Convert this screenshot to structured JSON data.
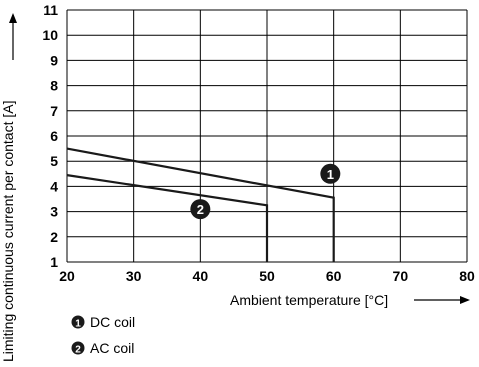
{
  "chart_data": {
    "type": "line",
    "xlabel": "Ambient temperature [°C]",
    "ylabel": "Limiting continuous current per contact [A]",
    "xlim": [
      20,
      80
    ],
    "ylim": [
      1,
      11
    ],
    "x_ticks": [
      20,
      30,
      40,
      50,
      60,
      70,
      80
    ],
    "y_ticks": [
      1,
      2,
      3,
      4,
      5,
      6,
      7,
      8,
      9,
      10,
      11
    ],
    "grid": true,
    "series": [
      {
        "marker": "1",
        "name": "DC coil",
        "x": [
          20,
          60,
          60
        ],
        "y": [
          5.5,
          3.55,
          1
        ]
      },
      {
        "marker": "2",
        "name": "AC coil",
        "x": [
          20,
          50,
          50
        ],
        "y": [
          4.45,
          3.25,
          1
        ]
      }
    ],
    "legend": [
      {
        "marker": "1",
        "label": "DC coil"
      },
      {
        "marker": "2",
        "label": "AC coil"
      }
    ]
  }
}
